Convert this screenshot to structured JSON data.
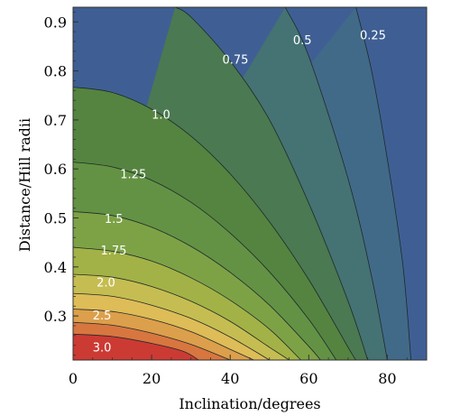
{
  "chart_data": {
    "type": "contour",
    "xlabel": "Inclination/degrees",
    "ylabel": "Distance/Hill radii",
    "xlim": [
      0,
      90
    ],
    "ylim": [
      0.21,
      0.93
    ],
    "x_ticks": [
      "0",
      "20",
      "40",
      "60",
      "80"
    ],
    "y_ticks": [
      "0.3",
      "0.4",
      "0.5",
      "0.6",
      "0.7",
      "0.8",
      "0.9"
    ],
    "contours": [
      {
        "level": 3.0,
        "label": "3.0",
        "label_at": [
          5,
          0.235
        ],
        "points": [
          [
            0,
            0.263
          ],
          [
            10,
            0.258
          ],
          [
            20,
            0.244
          ],
          [
            28,
            0.228
          ],
          [
            32,
            0.21
          ]
        ]
      },
      {
        "level": 2.75,
        "label": "",
        "label_at": null,
        "points": [
          [
            0,
            0.287
          ],
          [
            10,
            0.281
          ],
          [
            20,
            0.265
          ],
          [
            30,
            0.242
          ],
          [
            40,
            0.21
          ]
        ]
      },
      {
        "level": 2.5,
        "label": "2.5",
        "label_at": [
          5,
          0.3
        ],
        "points": [
          [
            0,
            0.314
          ],
          [
            10,
            0.309
          ],
          [
            20,
            0.293
          ],
          [
            30,
            0.268
          ],
          [
            40,
            0.232
          ],
          [
            46,
            0.21
          ]
        ]
      },
      {
        "level": 2.25,
        "label": "",
        "label_at": null,
        "points": [
          [
            0,
            0.346
          ],
          [
            10,
            0.34
          ],
          [
            20,
            0.322
          ],
          [
            30,
            0.295
          ],
          [
            40,
            0.257
          ],
          [
            50,
            0.21
          ]
        ]
      },
      {
        "level": 2.0,
        "label": "2.0",
        "label_at": [
          6,
          0.367
        ],
        "points": [
          [
            0,
            0.385
          ],
          [
            10,
            0.379
          ],
          [
            20,
            0.36
          ],
          [
            30,
            0.33
          ],
          [
            40,
            0.289
          ],
          [
            50,
            0.236
          ],
          [
            55,
            0.21
          ]
        ]
      },
      {
        "level": 1.75,
        "label": "1.75",
        "label_at": [
          7,
          0.433
        ],
        "points": [
          [
            0,
            0.44
          ],
          [
            10,
            0.432
          ],
          [
            20,
            0.412
          ],
          [
            30,
            0.378
          ],
          [
            40,
            0.332
          ],
          [
            50,
            0.273
          ],
          [
            58,
            0.21
          ]
        ]
      },
      {
        "level": 1.5,
        "label": "1.5",
        "label_at": [
          8,
          0.497
        ],
        "points": [
          [
            0,
            0.513
          ],
          [
            10,
            0.505
          ],
          [
            20,
            0.481
          ],
          [
            30,
            0.442
          ],
          [
            40,
            0.389
          ],
          [
            50,
            0.322
          ],
          [
            60,
            0.238
          ],
          [
            63,
            0.21
          ]
        ]
      },
      {
        "level": 1.25,
        "label": "1.25",
        "label_at": [
          12,
          0.588
        ],
        "points": [
          [
            0,
            0.614
          ],
          [
            10,
            0.604
          ],
          [
            20,
            0.577
          ],
          [
            30,
            0.532
          ],
          [
            40,
            0.469
          ],
          [
            50,
            0.39
          ],
          [
            60,
            0.293
          ],
          [
            67,
            0.21
          ]
        ]
      },
      {
        "level": 1.0,
        "label": "1.0",
        "label_at": [
          20,
          0.71
        ],
        "points": [
          [
            0,
            0.767
          ],
          [
            10,
            0.756
          ],
          [
            20,
            0.722
          ],
          [
            30,
            0.667
          ],
          [
            40,
            0.59
          ],
          [
            50,
            0.492
          ],
          [
            60,
            0.374
          ],
          [
            70,
            0.236
          ],
          [
            72,
            0.21
          ]
        ]
      },
      {
        "level": 0.75,
        "label": "0.75",
        "label_at": [
          38,
          0.822
        ],
        "points": [
          [
            26,
            0.93
          ],
          [
            30,
            0.91
          ],
          [
            40,
            0.82
          ],
          [
            50,
            0.7
          ],
          [
            60,
            0.53
          ],
          [
            70,
            0.33
          ],
          [
            75,
            0.21
          ]
        ]
      },
      {
        "level": 0.5,
        "label": "0.5",
        "label_at": [
          56,
          0.862
        ],
        "points": [
          [
            54,
            0.93
          ],
          [
            60,
            0.83
          ],
          [
            70,
            0.58
          ],
          [
            76,
            0.38
          ],
          [
            80,
            0.21
          ]
        ]
      },
      {
        "level": 0.25,
        "label": "0.25",
        "label_at": [
          73,
          0.872
        ],
        "points": [
          [
            72,
            0.93
          ],
          [
            76,
            0.8
          ],
          [
            80,
            0.62
          ],
          [
            84,
            0.4
          ],
          [
            86,
            0.21
          ]
        ]
      }
    ]
  }
}
